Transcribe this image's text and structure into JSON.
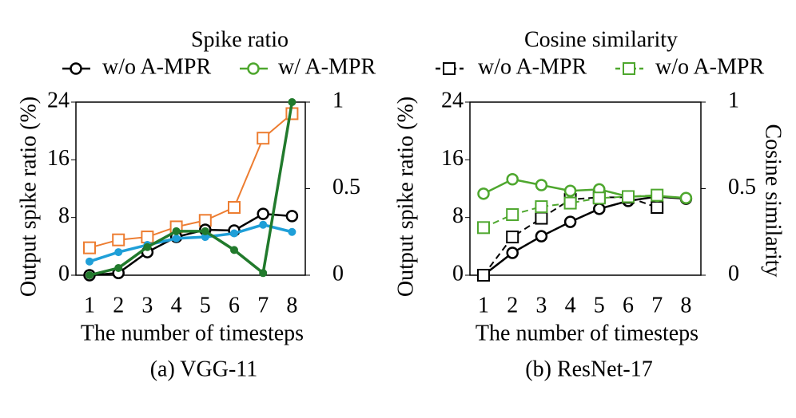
{
  "legend": [
    {
      "title": "Spike ratio",
      "items": [
        {
          "label": "w/o A-MPR",
          "color": "#000000",
          "marker": "circle",
          "dash": false
        },
        {
          "label": "w/ A-MPR",
          "color": "#4ea72e",
          "marker": "circle",
          "dash": false
        }
      ]
    },
    {
      "title": "Cosine similarity",
      "items": [
        {
          "label": "w/o A-MPR",
          "color": "#000000",
          "marker": "square",
          "dash": true
        },
        {
          "label": "w/o A-MPR",
          "color": "#4ea72e",
          "marker": "square",
          "dash": true
        }
      ]
    }
  ],
  "chart_data": [
    {
      "type": "line",
      "title": "(a) VGG-11",
      "xlabel": "The number of timesteps",
      "ylabel": "Output spike ratio (%)",
      "categories": [
        "1",
        "2",
        "3",
        "4",
        "5",
        "6",
        "7",
        "8"
      ],
      "ylim": [
        0,
        24
      ],
      "yticks": [
        0,
        8,
        16,
        24
      ],
      "y2lim": [
        0,
        1
      ],
      "y2ticks": [
        0,
        0.5,
        1
      ],
      "series": [
        {
          "color": "#ed7d31",
          "marker": "square",
          "dash": false,
          "width": 2,
          "values": [
            3.8,
            4.9,
            5.3,
            6.7,
            7.6,
            9.4,
            19,
            22.4
          ]
        },
        {
          "color": "#000000",
          "marker": "circle",
          "dash": false,
          "width": 2.5,
          "values": [
            0,
            0.3,
            3.2,
            5.3,
            6.3,
            6.2,
            8.5,
            8.2
          ]
        },
        {
          "color": "#1f9fd8",
          "marker": "dot",
          "dash": false,
          "width": 3.5,
          "values": [
            1.9,
            3.2,
            4.2,
            5.1,
            5.3,
            5.8,
            7.0,
            6.0
          ]
        },
        {
          "color": "#217a2c",
          "marker": "dot",
          "dash": false,
          "width": 3.5,
          "values": [
            0,
            1.0,
            3.9,
            6.1,
            6.1,
            3.5,
            0.3,
            24
          ]
        }
      ]
    },
    {
      "type": "line",
      "title": "(b) ResNet-17",
      "xlabel": "The number of timesteps",
      "ylabel": "Output spike ratio (%)",
      "y2label": "Cosine similarity",
      "categories": [
        "1",
        "2",
        "3",
        "4",
        "5",
        "6",
        "7",
        "8"
      ],
      "ylim": [
        0,
        24
      ],
      "yticks": [
        0,
        8,
        16,
        24
      ],
      "y2lim": [
        0,
        1
      ],
      "y2ticks": [
        0,
        0.5,
        1
      ],
      "series": [
        {
          "color": "#000000",
          "marker": "circle",
          "dash": false,
          "width": 2.5,
          "values": [
            0,
            3.1,
            5.4,
            7.4,
            9.2,
            10.3,
            10.9,
            10.6
          ]
        },
        {
          "color": "#000000",
          "marker": "square",
          "dash": true,
          "width": 2,
          "values": [
            0,
            5.3,
            7.9,
            10.5,
            10.8,
            10.8,
            9.4,
            null
          ]
        },
        {
          "color": "#4ea72e",
          "marker": "circle",
          "dash": false,
          "width": 2.5,
          "values": [
            11.3,
            13.3,
            12.5,
            11.7,
            11.9,
            10.9,
            11.0,
            10.7
          ]
        },
        {
          "color": "#4ea72e",
          "marker": "square",
          "dash": true,
          "width": 2,
          "values": [
            6.6,
            8.4,
            9.5,
            10.0,
            10.7,
            10.9,
            11.1,
            null
          ]
        }
      ]
    }
  ]
}
